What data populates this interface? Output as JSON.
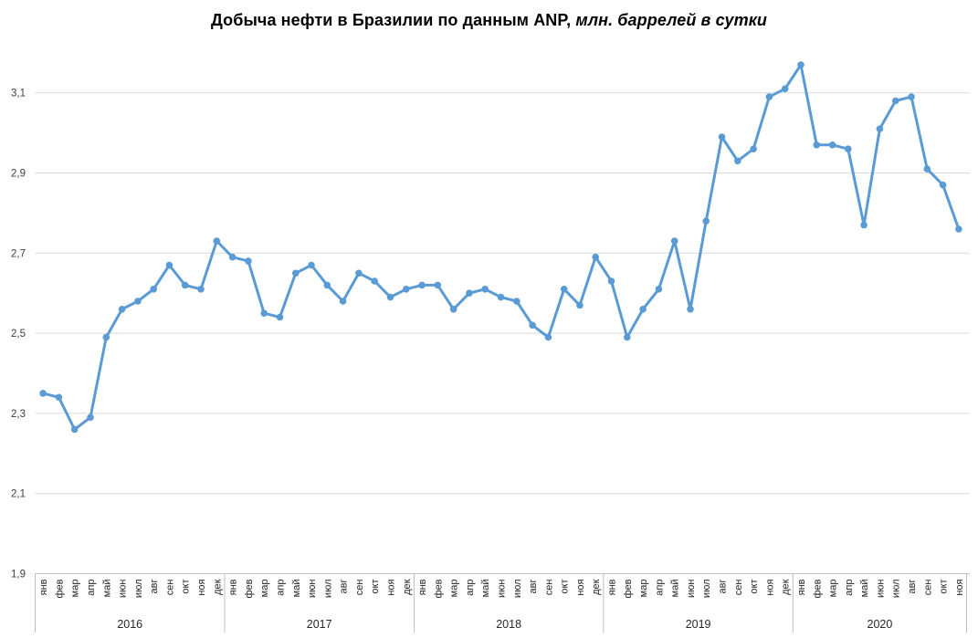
{
  "title": {
    "main": "Добыча нефти в Бразилии по данным ANP,",
    "unit": " млн. баррелей в сутки"
  },
  "chart_data": {
    "type": "line",
    "title": "Добыча нефти в Бразилии по данным ANP, млн. баррелей в сутки",
    "legend": "none",
    "grid": "horizontal",
    "ylim": [
      1.9,
      3.1
    ],
    "ytick_step": 0.2,
    "ytick_labels": [
      "3,1",
      "2,9",
      "2,7",
      "2,5",
      "2,3",
      "2,1",
      "1,9"
    ],
    "ytick_values": [
      3.1,
      2.9,
      2.7,
      2.5,
      2.3,
      2.1,
      1.9
    ],
    "month_labels": [
      "янв",
      "фев",
      "мар",
      "апр",
      "май",
      "июн",
      "июл",
      "авг",
      "сен",
      "окт",
      "ноя",
      "дек"
    ],
    "series_name": "Добыча нефти, млн. баррелей в сутки",
    "years": [
      {
        "year": "2016",
        "values": [
          2.35,
          2.34,
          2.26,
          2.29,
          2.49,
          2.56,
          2.58,
          2.61,
          2.67,
          2.62,
          2.61,
          2.73
        ]
      },
      {
        "year": "2017",
        "values": [
          2.69,
          2.68,
          2.55,
          2.54,
          2.65,
          2.67,
          2.62,
          2.58,
          2.65,
          2.63,
          2.59,
          2.61
        ]
      },
      {
        "year": "2018",
        "values": [
          2.62,
          2.62,
          2.56,
          2.6,
          2.61,
          2.59,
          2.58,
          2.52,
          2.49,
          2.61,
          2.57,
          2.69
        ]
      },
      {
        "year": "2019",
        "values": [
          2.63,
          2.49,
          2.56,
          2.61,
          2.73,
          2.56,
          2.78,
          2.99,
          2.93,
          2.96,
          3.09,
          3.11
        ]
      },
      {
        "year": "2020",
        "values": [
          3.17,
          2.97,
          2.97,
          2.96,
          2.77,
          3.01,
          3.08,
          3.09,
          2.91,
          2.87,
          2.76
        ]
      }
    ],
    "colors": {
      "line": "#5B9BD5",
      "marker": "#5B9BD5",
      "gridline": "#D9D9D9",
      "axis": "#BFBFBF",
      "tick_label": "#404040",
      "category_label": "#262626",
      "title": "#000000"
    }
  }
}
